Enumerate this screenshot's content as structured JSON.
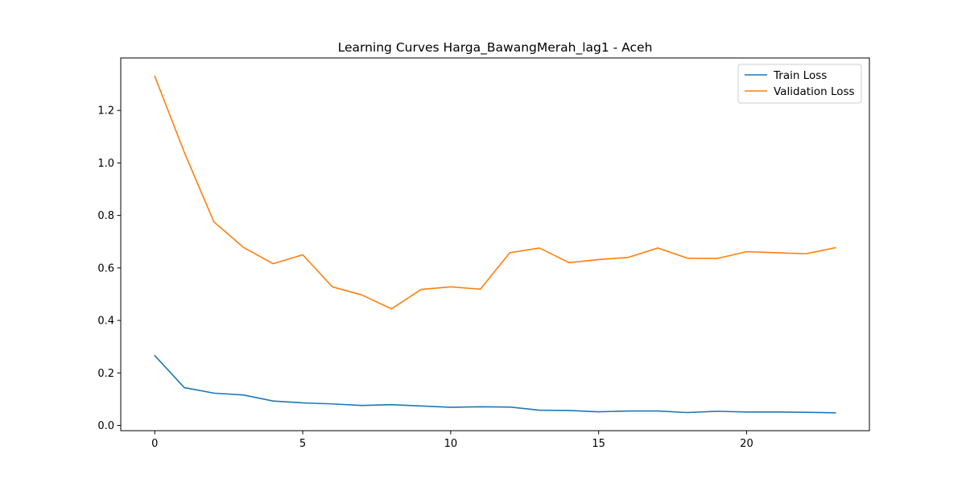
{
  "chart_data": {
    "type": "line",
    "title": "Learning Curves Harga_BawangMerah_lag1 - Aceh",
    "xlabel": "",
    "ylabel": "",
    "xlim": [
      -1.15,
      24.15
    ],
    "ylim": [
      -0.02,
      1.4
    ],
    "x_ticks": [
      0,
      5,
      10,
      15,
      20
    ],
    "y_ticks": [
      0.0,
      0.2,
      0.4,
      0.6,
      0.8,
      1.0,
      1.2
    ],
    "x_tick_labels": [
      "0",
      "5",
      "10",
      "15",
      "20"
    ],
    "y_tick_labels": [
      "0.0",
      "0.2",
      "0.4",
      "0.6",
      "0.8",
      "1.0",
      "1.2"
    ],
    "grid": false,
    "legend_position": "top-right",
    "x": [
      0,
      1,
      2,
      3,
      4,
      5,
      6,
      7,
      8,
      9,
      10,
      11,
      12,
      13,
      14,
      15,
      16,
      17,
      18,
      19,
      20,
      21,
      22,
      23
    ],
    "series": [
      {
        "name": "Train Loss",
        "color": "#1f77b4",
        "values": [
          0.266,
          0.144,
          0.123,
          0.116,
          0.093,
          0.086,
          0.082,
          0.076,
          0.079,
          0.074,
          0.069,
          0.071,
          0.07,
          0.058,
          0.057,
          0.052,
          0.055,
          0.055,
          0.049,
          0.054,
          0.051,
          0.051,
          0.05,
          0.048
        ]
      },
      {
        "name": "Validation Loss",
        "color": "#ff7f0e",
        "values": [
          1.33,
          1.04,
          0.775,
          0.678,
          0.616,
          0.65,
          0.528,
          0.497,
          0.444,
          0.518,
          0.528,
          0.519,
          0.658,
          0.676,
          0.62,
          0.632,
          0.64,
          0.676,
          0.637,
          0.636,
          0.662,
          0.658,
          0.654,
          0.677
        ]
      }
    ]
  }
}
